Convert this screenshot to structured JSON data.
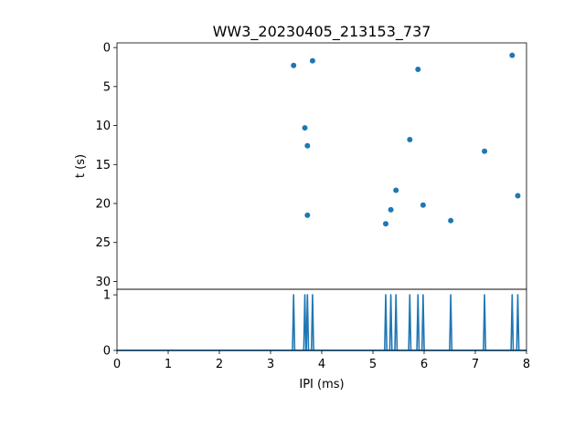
{
  "chart_data": {
    "title": "WW3_20230405_213153_737",
    "type": "scatter",
    "color": "#1f77b4",
    "scatter": {
      "ylabel": "t (s)",
      "ylim": [
        31,
        -0.6
      ],
      "y_inverted": true,
      "yticks": [
        0,
        5,
        10,
        15,
        20,
        25,
        30
      ],
      "points": [
        {
          "x": 3.45,
          "y": 2.3
        },
        {
          "x": 3.82,
          "y": 1.7
        },
        {
          "x": 5.88,
          "y": 2.8
        },
        {
          "x": 7.72,
          "y": 1.0
        },
        {
          "x": 3.67,
          "y": 10.3
        },
        {
          "x": 3.72,
          "y": 12.6
        },
        {
          "x": 5.72,
          "y": 11.8
        },
        {
          "x": 7.18,
          "y": 13.3
        },
        {
          "x": 5.45,
          "y": 18.3
        },
        {
          "x": 7.83,
          "y": 19.0
        },
        {
          "x": 5.35,
          "y": 20.8
        },
        {
          "x": 5.98,
          "y": 20.2
        },
        {
          "x": 3.72,
          "y": 21.5
        },
        {
          "x": 5.25,
          "y": 22.6
        },
        {
          "x": 6.52,
          "y": 22.2
        }
      ]
    },
    "histogram": {
      "type": "line",
      "xlabel": "IPI (ms)",
      "xlim": [
        0,
        8
      ],
      "ylim": [
        0,
        1.1
      ],
      "xticks": [
        0,
        1,
        2,
        3,
        4,
        5,
        6,
        7,
        8
      ],
      "yticks": [
        0,
        1
      ],
      "spikes_x": [
        3.45,
        3.67,
        3.72,
        3.82,
        5.25,
        5.35,
        5.45,
        5.72,
        5.88,
        5.98,
        6.52,
        7.18,
        7.72,
        7.83
      ],
      "spike_height": 1
    }
  }
}
